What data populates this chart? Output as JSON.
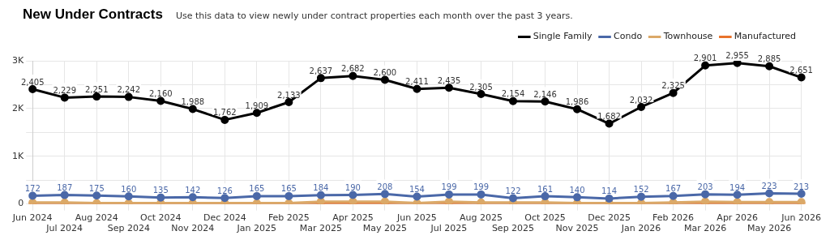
{
  "chart_data": {
    "type": "line",
    "title": "New Under Contracts",
    "subtitle": "Use this data to view newly under contract properties each month over the past 3 years.",
    "categories": [
      "Jun 2024",
      "Jul 2024",
      "Aug 2024",
      "Sep 2024",
      "Oct 2024",
      "Nov 2024",
      "Dec 2024",
      "Jan 2025",
      "Feb 2025",
      "Mar 2025",
      "Apr 2025",
      "May 2025",
      "Jun 2025",
      "Jul 2025",
      "Aug 2025",
      "Sep 2025",
      "Oct 2025",
      "Nov 2025",
      "Dec 2025",
      "Jan 2026",
      "Feb 2026",
      "Mar 2026",
      "Apr 2026",
      "May 2026",
      "Jun 2026"
    ],
    "series": [
      {
        "name": "Single Family",
        "color": "#000000",
        "values": [
          2405,
          2229,
          2251,
          2242,
          2160,
          1988,
          1762,
          1909,
          2133,
          2637,
          2682,
          2600,
          2411,
          2435,
          2305,
          2154,
          2146,
          1986,
          1682,
          2032,
          2325,
          2901,
          2955,
          2885,
          2651
        ],
        "value_labels": [
          "2,405",
          "2,229",
          "2,251",
          "2,242",
          "2,160",
          "1,988",
          "1,762",
          "1,909",
          "2,133",
          "2,637",
          "2,682",
          "2,600",
          "2,411",
          "2,435",
          "2,305",
          "2,154",
          "2,146",
          "1,986",
          "1,682",
          "2,032",
          "2,325",
          "2,901",
          "2,955",
          "2,885",
          "2,651"
        ]
      },
      {
        "name": "Condo",
        "color": "#4a68a8",
        "values": [
          172,
          187,
          175,
          160,
          135,
          142,
          126,
          165,
          165,
          184,
          190,
          208,
          154,
          199,
          199,
          122,
          161,
          140,
          114,
          152,
          167,
          203,
          194,
          223,
          213
        ],
        "value_labels": [
          "172",
          "187",
          "175",
          "160",
          "135",
          "142",
          "126",
          "165",
          "165",
          "184",
          "190",
          "208",
          "154",
          "199",
          "199",
          "122",
          "161",
          "140",
          "114",
          "152",
          "167",
          "203",
          "194",
          "223",
          "213"
        ]
      },
      {
        "name": "Townhouse",
        "color": "#dba968",
        "values": [
          30,
          30,
          20,
          20,
          20,
          20,
          20,
          20,
          20,
          50,
          50,
          50,
          20,
          50,
          30,
          30,
          30,
          20,
          20,
          20,
          30,
          50,
          40,
          40,
          40
        ]
      },
      {
        "name": "Manufactured",
        "color": "#e8732c",
        "values": [
          0,
          0,
          0,
          0,
          0,
          0,
          0,
          0,
          0,
          0,
          0,
          0,
          0,
          0,
          0,
          0,
          0,
          0,
          0,
          0,
          0,
          0,
          0,
          0,
          0
        ]
      }
    ],
    "ylim": [
      0,
      3000
    ],
    "yticks": [
      {
        "value": 0,
        "label": "0"
      },
      {
        "value": 500,
        "label": null
      },
      {
        "value": 1000,
        "label": "1K"
      },
      {
        "value": 1500,
        "label": null
      },
      {
        "value": 2000,
        "label": "2K"
      },
      {
        "value": 2500,
        "label": null
      },
      {
        "value": 3000,
        "label": "3K"
      }
    ],
    "grid": true,
    "legend": "top right",
    "marker": "circle",
    "line_style": "solid"
  }
}
